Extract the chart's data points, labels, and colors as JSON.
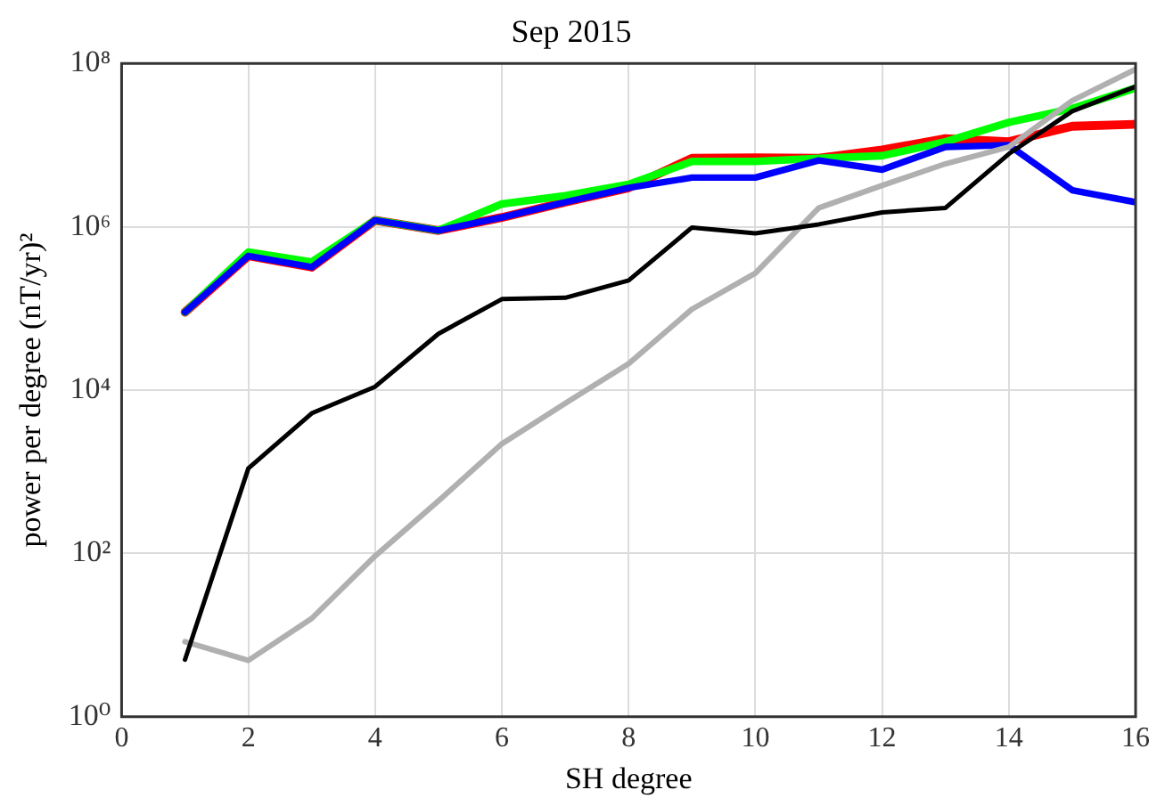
{
  "chart_data": {
    "type": "line",
    "title": "Sep 2015",
    "xlabel": "SH degree",
    "ylabel": "power per degree (nT/yr)²",
    "x": [
      1,
      2,
      3,
      4,
      5,
      6,
      7,
      8,
      9,
      10,
      11,
      12,
      13,
      14,
      15,
      16
    ],
    "series": [
      {
        "color": "#ff0000",
        "values": [
          90000,
          440000,
          320000,
          1200000,
          900000,
          1300000,
          2000000,
          3000000,
          6900000,
          7000000,
          6900000,
          8700000,
          12000000,
          11000000,
          17000000,
          18000000
        ]
      },
      {
        "color": "#00ff00",
        "values": [
          90000,
          490000,
          370000,
          1200000,
          900000,
          1900000,
          2400000,
          3300000,
          6300000,
          6300000,
          6900000,
          7400000,
          11000000,
          19000000,
          28000000,
          50000000
        ]
      },
      {
        "color": "#0000ff",
        "values": [
          90000,
          440000,
          320000,
          1200000,
          900000,
          1300000,
          2000000,
          3000000,
          4000000,
          4000000,
          6500000,
          5000000,
          9500000,
          10000000,
          2800000,
          2000000
        ]
      },
      {
        "color": "#b0b0b0",
        "values": [
          8.3,
          4.9,
          16,
          93,
          440,
          2200,
          6900,
          21000,
          98000,
          270000,
          1700000,
          3200000,
          5900000,
          9500000,
          35000000,
          85000000
        ]
      },
      {
        "color": "#000000",
        "values": [
          5,
          1100,
          5200,
          11000,
          49000,
          130000,
          135000,
          220000,
          980000,
          830000,
          1070000,
          1500000,
          1700000,
          7800000,
          26000000,
          52000000
        ]
      }
    ],
    "xlim": [
      0,
      16
    ],
    "xticks": [
      0,
      2,
      4,
      6,
      8,
      10,
      12,
      14,
      16
    ],
    "log": "y",
    "ylim": [
      1,
      100000000
    ],
    "yticks": [
      {
        "value": 1,
        "label": "10⁰"
      },
      {
        "value": 100,
        "label": "10²"
      },
      {
        "value": 10000,
        "label": "10⁴"
      },
      {
        "value": 1000000,
        "label": "10⁶"
      },
      {
        "value": 100000000,
        "label": "10⁸"
      }
    ],
    "grid": true,
    "legend": false,
    "marker": "none",
    "line_style": "solid"
  }
}
